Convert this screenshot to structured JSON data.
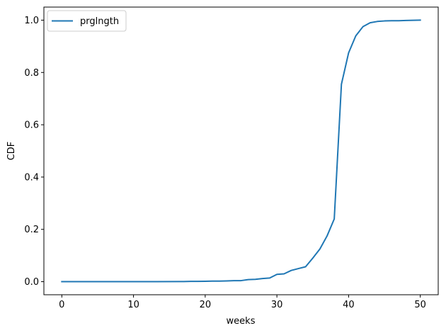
{
  "chart_data": {
    "type": "line",
    "title": "",
    "xlabel": "weeks",
    "ylabel": "CDF",
    "xlim": [
      -2.5,
      52.5
    ],
    "ylim": [
      -0.05,
      1.05
    ],
    "xticks": [
      0,
      10,
      20,
      30,
      40,
      50
    ],
    "yticks": [
      0.0,
      0.2,
      0.4,
      0.6,
      0.8,
      1.0
    ],
    "xtick_labels": [
      "0",
      "10",
      "20",
      "30",
      "40",
      "50"
    ],
    "ytick_labels": [
      "0.0",
      "0.2",
      "0.4",
      "0.6",
      "0.8",
      "1.0"
    ],
    "grid": false,
    "legend_position": "top-left",
    "series": [
      {
        "name": "prglngth",
        "color": "#1f77b4",
        "points": [
          [
            0,
            0.0
          ],
          [
            4,
            0.0
          ],
          [
            9,
            0.0
          ],
          [
            13,
            0.0
          ],
          [
            17,
            0.0005
          ],
          [
            18,
            0.001
          ],
          [
            19,
            0.001
          ],
          [
            20,
            0.0015
          ],
          [
            21,
            0.002
          ],
          [
            22,
            0.002
          ],
          [
            23,
            0.003
          ],
          [
            24,
            0.004
          ],
          [
            25,
            0.004
          ],
          [
            26,
            0.008
          ],
          [
            27,
            0.009
          ],
          [
            28,
            0.012
          ],
          [
            29,
            0.014
          ],
          [
            30,
            0.028
          ],
          [
            31,
            0.03
          ],
          [
            32,
            0.043
          ],
          [
            33,
            0.05
          ],
          [
            34,
            0.057
          ],
          [
            35,
            0.09
          ],
          [
            36,
            0.125
          ],
          [
            37,
            0.175
          ],
          [
            38,
            0.24
          ],
          [
            39,
            0.755
          ],
          [
            40,
            0.875
          ],
          [
            41,
            0.94
          ],
          [
            42,
            0.975
          ],
          [
            43,
            0.99
          ],
          [
            44,
            0.995
          ],
          [
            45,
            0.997
          ],
          [
            46,
            0.998
          ],
          [
            47,
            0.998
          ],
          [
            48,
            0.999
          ],
          [
            50,
            1.0
          ]
        ]
      }
    ]
  }
}
